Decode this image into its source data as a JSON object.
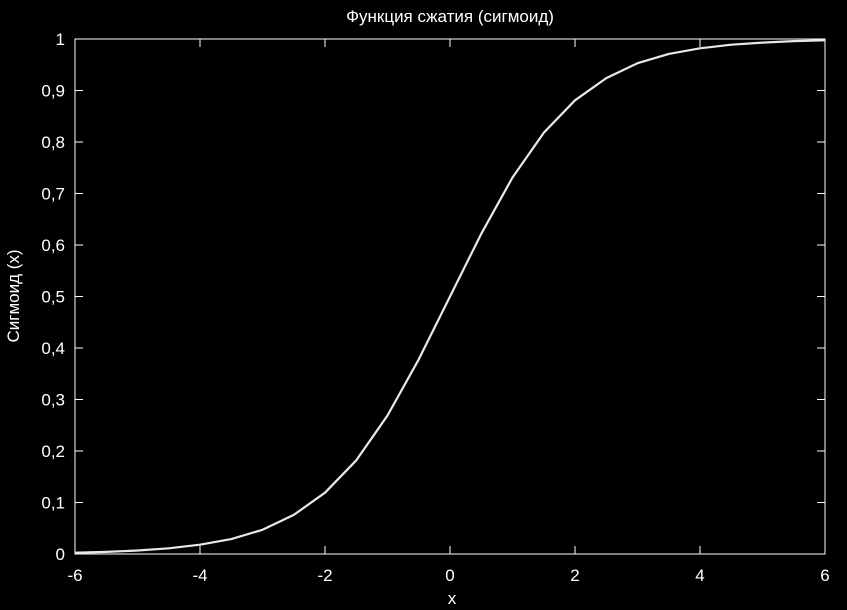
{
  "chart_data": {
    "type": "line",
    "title": "Функция сжатия (сигмоид)",
    "xlabel": "x",
    "ylabel": "Сигмоид (x)",
    "xlim": [
      -6,
      6
    ],
    "ylim": [
      0,
      1
    ],
    "x_ticks": [
      -6,
      -4,
      -2,
      0,
      2,
      4,
      6
    ],
    "x_tick_labels": [
      "-6",
      "-4",
      "-2",
      "0",
      "2",
      "4",
      "6"
    ],
    "y_ticks": [
      0,
      0.1,
      0.2,
      0.3,
      0.4,
      0.5,
      0.6,
      0.7,
      0.8,
      0.9,
      1
    ],
    "y_tick_labels": [
      "0",
      "0,1",
      "0,2",
      "0,3",
      "0,4",
      "0,5",
      "0,6",
      "0,7",
      "0,8",
      "0,9",
      "1"
    ],
    "grid": false,
    "legend": "none",
    "colors": {
      "background": "#000000",
      "foreground": "#ffffff",
      "curve": "#e8e8e8"
    },
    "series": [
      {
        "x": [
          -6,
          -5.5,
          -5,
          -4.5,
          -4,
          -3.5,
          -3,
          -2.5,
          -2,
          -1.5,
          -1,
          -0.5,
          0,
          0.5,
          1,
          1.5,
          2,
          2.5,
          3,
          3.5,
          4,
          4.5,
          5,
          5.5,
          6
        ],
        "values": [
          0.0025,
          0.0041,
          0.0067,
          0.011,
          0.018,
          0.029,
          0.047,
          0.076,
          0.119,
          0.182,
          0.269,
          0.378,
          0.5,
          0.622,
          0.731,
          0.818,
          0.881,
          0.924,
          0.953,
          0.971,
          0.982,
          0.989,
          0.993,
          0.996,
          0.9975
        ]
      }
    ]
  }
}
